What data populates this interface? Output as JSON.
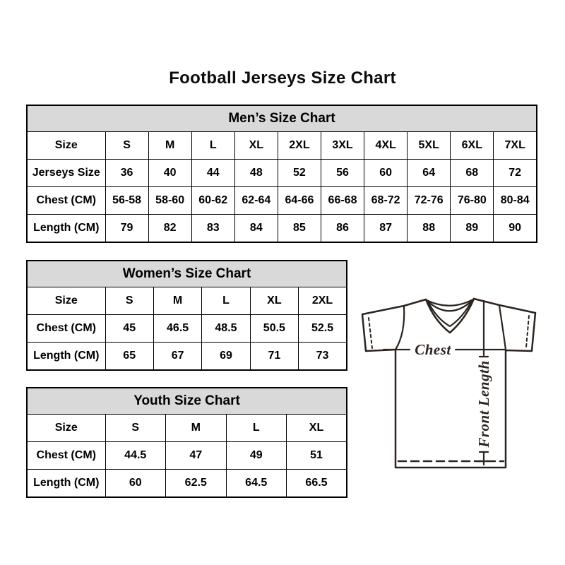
{
  "title": "Football Jerseys Size Chart",
  "sections": [
    {
      "id": "men",
      "header": "Men’s Size Chart",
      "rows": [
        [
          "Size",
          "S",
          "M",
          "L",
          "XL",
          "2XL",
          "3XL",
          "4XL",
          "5XL",
          "6XL",
          "7XL"
        ],
        [
          "Jerseys Size",
          "36",
          "40",
          "44",
          "48",
          "52",
          "56",
          "60",
          "64",
          "68",
          "72"
        ],
        [
          "Chest (CM)",
          "56-58",
          "58-60",
          "60-62",
          "62-64",
          "64-66",
          "66-68",
          "68-72",
          "72-76",
          "76-80",
          "80-84"
        ],
        [
          "Length (CM)",
          "79",
          "82",
          "83",
          "84",
          "85",
          "86",
          "87",
          "88",
          "89",
          "90"
        ]
      ]
    },
    {
      "id": "women",
      "header": "Women’s Size Chart",
      "rows": [
        [
          "Size",
          "S",
          "M",
          "L",
          "XL",
          "2XL"
        ],
        [
          "Chest (CM)",
          "45",
          "46.5",
          "48.5",
          "50.5",
          "52.5"
        ],
        [
          "Length (CM)",
          "65",
          "67",
          "69",
          "71",
          "73"
        ]
      ]
    },
    {
      "id": "youth",
      "header": "Youth Size Chart",
      "rows": [
        [
          "Size",
          "S",
          "M",
          "L",
          "XL"
        ],
        [
          "Chest (CM)",
          "44.5",
          "47",
          "49",
          "51"
        ],
        [
          "Length (CM)",
          "60",
          "62.5",
          "64.5",
          "66.5"
        ]
      ]
    }
  ],
  "diagram": {
    "chest_label": "Chest",
    "front_length_label": "Front Length"
  },
  "colors": {
    "background": "#ffffff",
    "section_header_bg": "#d9d9d9",
    "table_border": "#000000",
    "text": "#000000",
    "diagram_stroke": "#2b2420"
  }
}
